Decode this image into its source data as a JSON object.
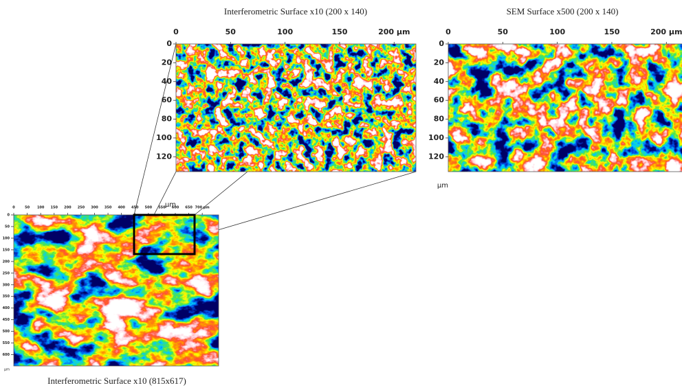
{
  "panels": [
    {
      "title": "Interferometric Surface x10 (200 x 140)",
      "xticks": [
        "0",
        "50",
        "100",
        "150",
        "200 µm"
      ],
      "yticks": [
        "0",
        "20",
        "40",
        "60",
        "80",
        "100",
        "120"
      ],
      "yunit": "µm"
    },
    {
      "title": "SEM Surface x500 (200 x 140)",
      "xticks": [
        "0",
        "50",
        "100",
        "150",
        "200 µm"
      ],
      "yticks": [
        "0",
        "20",
        "40",
        "60",
        "80",
        "100",
        "120"
      ],
      "yunit": "µm"
    },
    {
      "title": "Interferometric Surface x10 (815x617)",
      "xticks": [
        "0",
        "50",
        "100",
        "150",
        "200",
        "250",
        "300",
        "350",
        "400",
        "450",
        "500",
        "550",
        "600",
        "650",
        "700 µm"
      ],
      "yticks": [
        "0",
        "50",
        "100",
        "150",
        "200",
        "250",
        "300",
        "350",
        "400",
        "450",
        "500",
        "550",
        "600"
      ],
      "yunit": "µm"
    }
  ]
}
